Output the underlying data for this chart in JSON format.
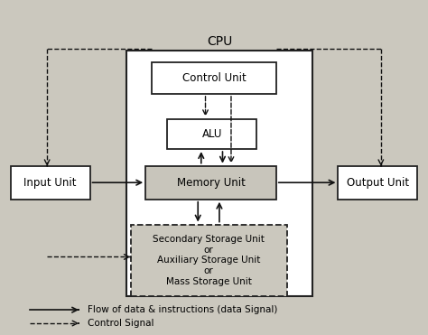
{
  "title": "CPU",
  "background_color": "#cbc8be",
  "legend": {
    "solid_label": "Flow of data & instructions (data Signal)",
    "dashed_label": "Control Signal"
  },
  "font_size_title": 10,
  "font_size_box": 8.5,
  "font_size_storage": 7.5,
  "font_size_legend": 7.5,
  "boxes": {
    "cpu_outer": [
      0.295,
      0.115,
      0.435,
      0.735
    ],
    "control_unit": [
      0.355,
      0.72,
      0.29,
      0.095
    ],
    "alu": [
      0.39,
      0.555,
      0.21,
      0.09
    ],
    "memory_unit": [
      0.34,
      0.405,
      0.305,
      0.1
    ],
    "input_unit": [
      0.025,
      0.405,
      0.185,
      0.1
    ],
    "output_unit": [
      0.79,
      0.405,
      0.185,
      0.1
    ],
    "secondary_storage": [
      0.305,
      0.115,
      0.365,
      0.215
    ]
  }
}
